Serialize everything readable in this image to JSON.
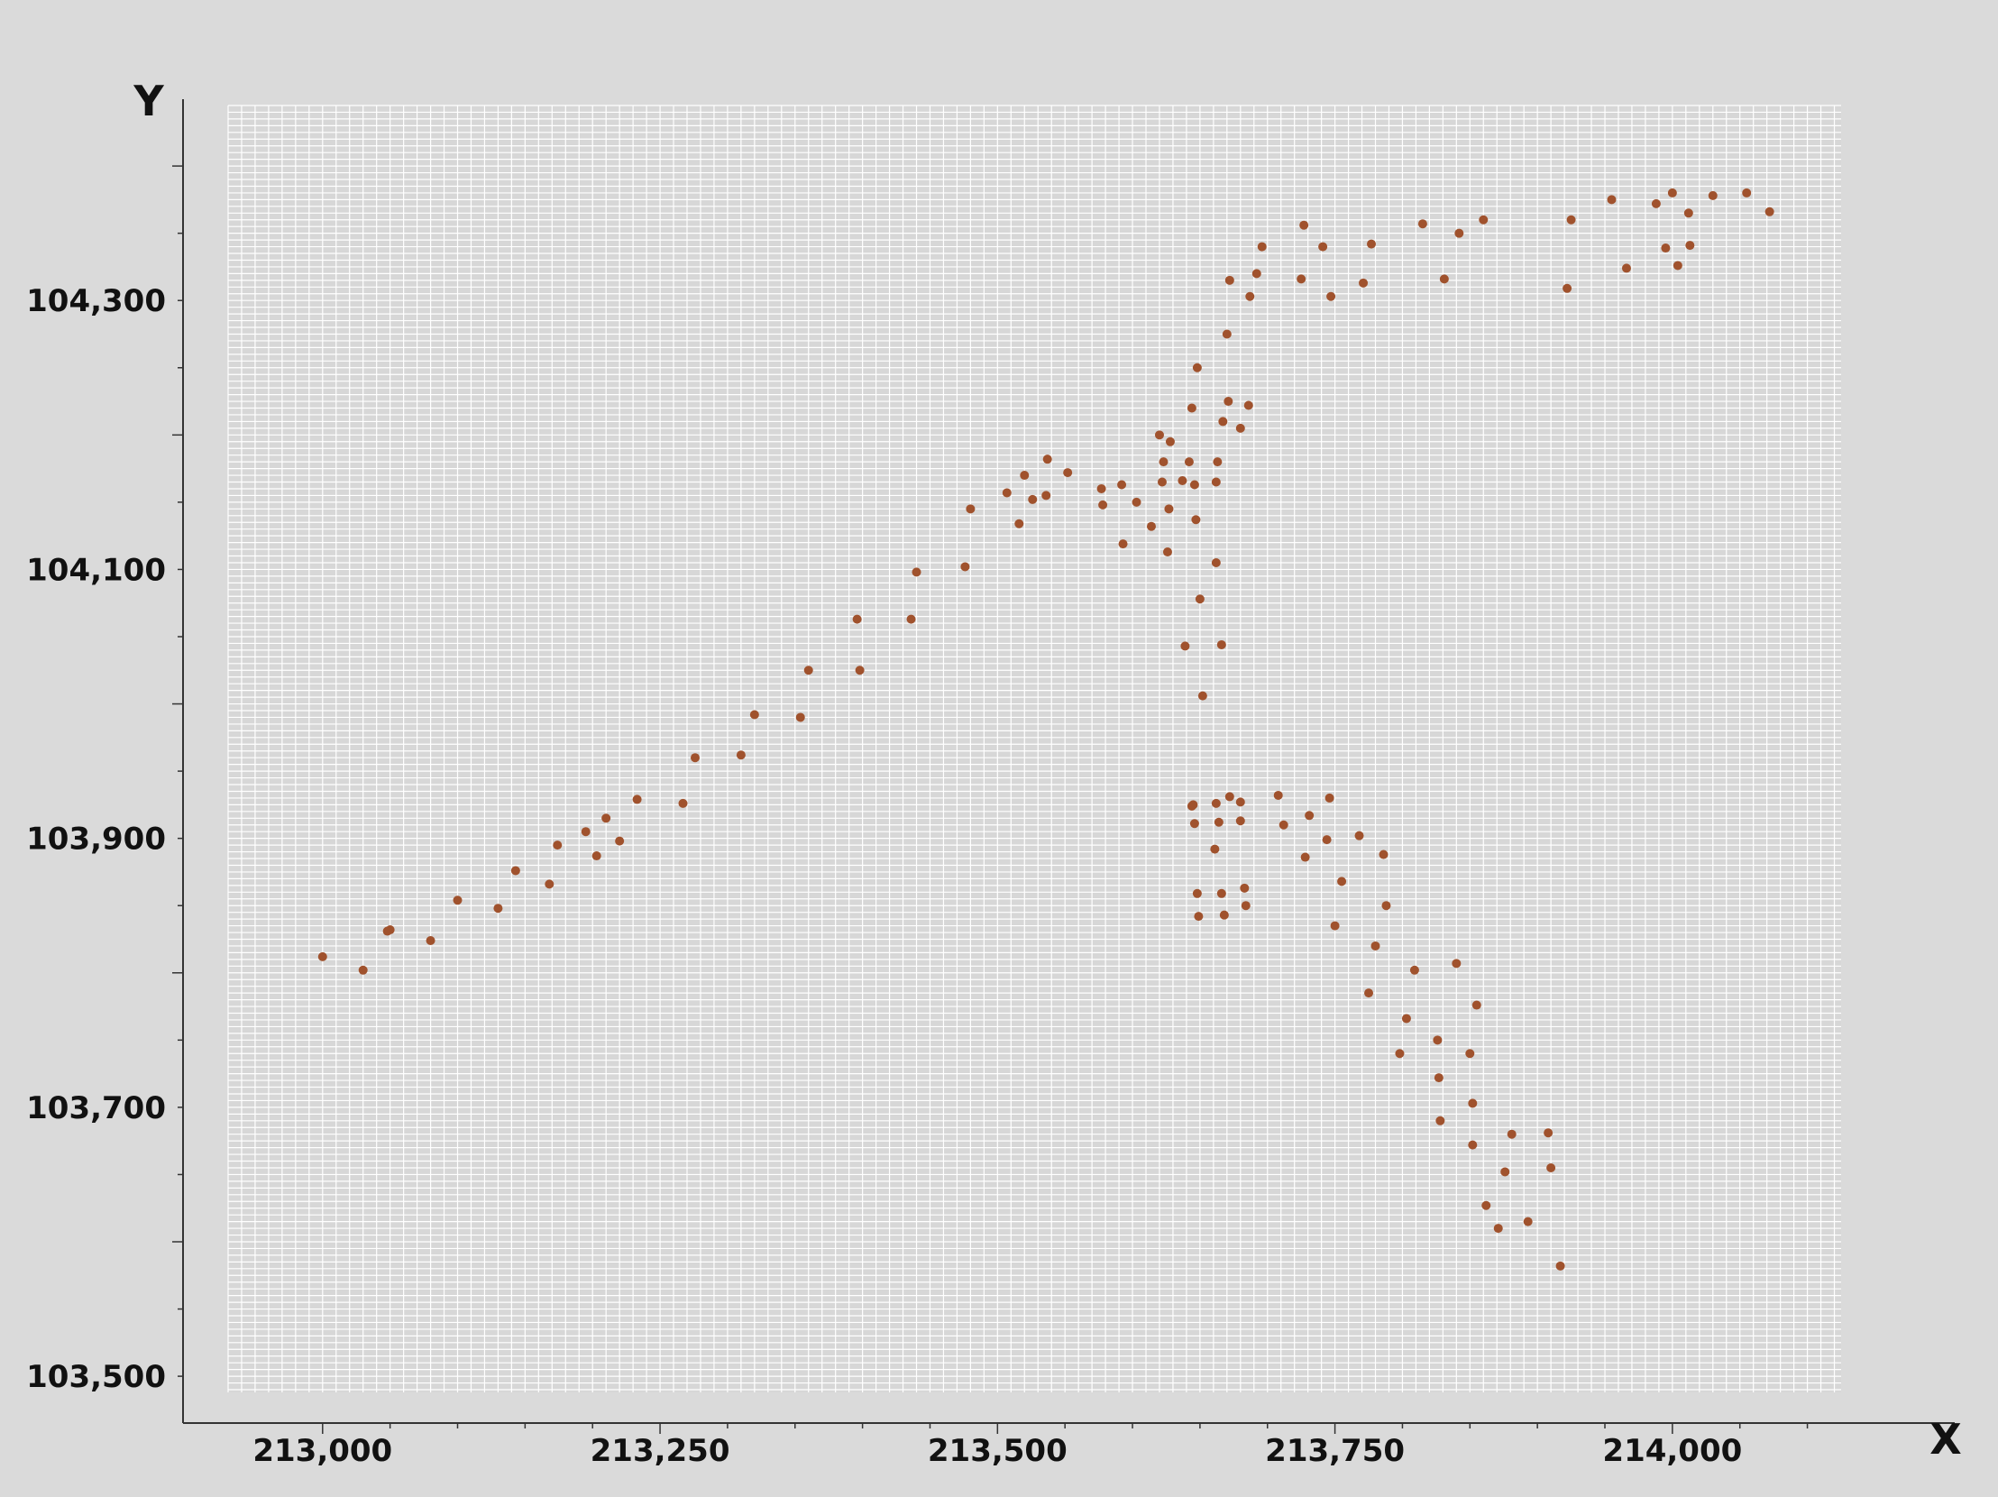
{
  "chart_data": {
    "type": "scatter",
    "title": "",
    "xlabel": "X",
    "ylabel": "Y",
    "xlim": [
      212930,
      214125
    ],
    "ylim": [
      103488,
      104445
    ],
    "x_ticks": [
      213000,
      213250,
      213500,
      213750,
      214000
    ],
    "y_ticks": [
      103500,
      103700,
      103900,
      104100,
      104300
    ],
    "x_tick_labels": [
      "213,000",
      "213,250",
      "213,500",
      "213,750",
      "214,000"
    ],
    "y_tick_labels": [
      "103,500",
      "103,700",
      "103,900",
      "104,100",
      "104,300"
    ],
    "grid": true,
    "colors": {
      "background": "#dadada",
      "plot": "#d7d7d7",
      "grid": "#ffffff",
      "points": "#a0522d",
      "axis": "#333333"
    },
    "series": [
      {
        "points": [
          [
            213000,
            103812
          ],
          [
            213030,
            103802
          ],
          [
            213048,
            103831
          ],
          [
            213050,
            103832
          ],
          [
            213080,
            103824
          ],
          [
            213100,
            103854
          ],
          [
            213130,
            103848
          ],
          [
            213143,
            103876
          ],
          [
            213168,
            103866
          ],
          [
            213174,
            103895
          ],
          [
            213195,
            103905
          ],
          [
            213203,
            103887
          ],
          [
            213210,
            103915
          ],
          [
            213220,
            103898
          ],
          [
            213233,
            103929
          ],
          [
            213267,
            103926
          ],
          [
            213276,
            103960
          ],
          [
            213310,
            103962
          ],
          [
            213320,
            103992
          ],
          [
            213354,
            103990
          ],
          [
            213360,
            104025
          ],
          [
            213396,
            104063
          ],
          [
            213398,
            104025
          ],
          [
            213436,
            104063
          ],
          [
            213440,
            104098
          ],
          [
            213476,
            104102
          ],
          [
            213480,
            104145
          ],
          [
            213507,
            104157
          ],
          [
            213516,
            104134
          ],
          [
            213520,
            104170
          ],
          [
            213526,
            104152
          ],
          [
            213536,
            104155
          ],
          [
            213537,
            104182
          ],
          [
            213552,
            104172
          ],
          [
            213577,
            104160
          ],
          [
            213578,
            104148
          ],
          [
            213592,
            104163
          ],
          [
            213593,
            104119
          ],
          [
            213603,
            104150
          ],
          [
            213614,
            104132
          ],
          [
            213620,
            104200
          ],
          [
            213622,
            104165
          ],
          [
            213623,
            104180
          ],
          [
            213626,
            104113
          ],
          [
            213627,
            104145
          ],
          [
            213628,
            104195
          ],
          [
            213637,
            104166
          ],
          [
            213639,
            104043
          ],
          [
            213642,
            104180
          ],
          [
            213644,
            104220
          ],
          [
            213646,
            104163
          ],
          [
            213647,
            104137
          ],
          [
            213648,
            104250
          ],
          [
            213650,
            104078
          ],
          [
            213652,
            104006
          ],
          [
            213662,
            104165
          ],
          [
            213663,
            104180
          ],
          [
            213662,
            104105
          ],
          [
            213666,
            104044
          ],
          [
            213667,
            104210
          ],
          [
            213670,
            104275
          ],
          [
            213671,
            104225
          ],
          [
            213672,
            104315
          ],
          [
            213680,
            104205
          ],
          [
            213686,
            104222
          ],
          [
            213687,
            104303
          ],
          [
            213692,
            104320
          ],
          [
            213696,
            104340
          ],
          [
            213725,
            104316
          ],
          [
            213727,
            104356
          ],
          [
            213741,
            104340
          ],
          [
            213747,
            104303
          ],
          [
            213771,
            104313
          ],
          [
            213777,
            104342
          ],
          [
            213815,
            104357
          ],
          [
            213831,
            104316
          ],
          [
            213842,
            104350
          ],
          [
            213860,
            104360
          ],
          [
            213922,
            104309
          ],
          [
            213925,
            104360
          ],
          [
            213955,
            104375
          ],
          [
            213966,
            104324
          ],
          [
            213988,
            104372
          ],
          [
            213995,
            104339
          ],
          [
            214000,
            104380
          ],
          [
            214004,
            104326
          ],
          [
            214012,
            104365
          ],
          [
            214013,
            104341
          ],
          [
            214030,
            104378
          ],
          [
            214055,
            104380
          ],
          [
            214072,
            104366
          ],
          [
            213644,
            103924
          ],
          [
            213645,
            103925
          ],
          [
            213646,
            103911
          ],
          [
            213648,
            103859
          ],
          [
            213649,
            103842
          ],
          [
            213661,
            103892
          ],
          [
            213662,
            103926
          ],
          [
            213664,
            103912
          ],
          [
            213666,
            103859
          ],
          [
            213668,
            103843
          ],
          [
            213672,
            103931
          ],
          [
            213680,
            103927
          ],
          [
            213680,
            103913
          ],
          [
            213683,
            103863
          ],
          [
            213684,
            103850
          ],
          [
            213708,
            103932
          ],
          [
            213712,
            103910
          ],
          [
            213728,
            103886
          ],
          [
            213731,
            103917
          ],
          [
            213744,
            103899
          ],
          [
            213746,
            103930
          ],
          [
            213750,
            103835
          ],
          [
            213755,
            103868
          ],
          [
            213768,
            103902
          ],
          [
            213775,
            103785
          ],
          [
            213780,
            103820
          ],
          [
            213786,
            103888
          ],
          [
            213788,
            103850
          ],
          [
            213798,
            103740
          ],
          [
            213803,
            103766
          ],
          [
            213809,
            103802
          ],
          [
            213826,
            103750
          ],
          [
            213827,
            103722
          ],
          [
            213828,
            103690
          ],
          [
            213840,
            103807
          ],
          [
            213850,
            103740
          ],
          [
            213852,
            103703
          ],
          [
            213852,
            103672
          ],
          [
            213855,
            103776
          ],
          [
            213862,
            103627
          ],
          [
            213871,
            103610
          ],
          [
            213876,
            103652
          ],
          [
            213881,
            103680
          ],
          [
            213893,
            103615
          ],
          [
            213908,
            103681
          ],
          [
            213910,
            103655
          ],
          [
            213917,
            103582
          ]
        ]
      }
    ]
  }
}
